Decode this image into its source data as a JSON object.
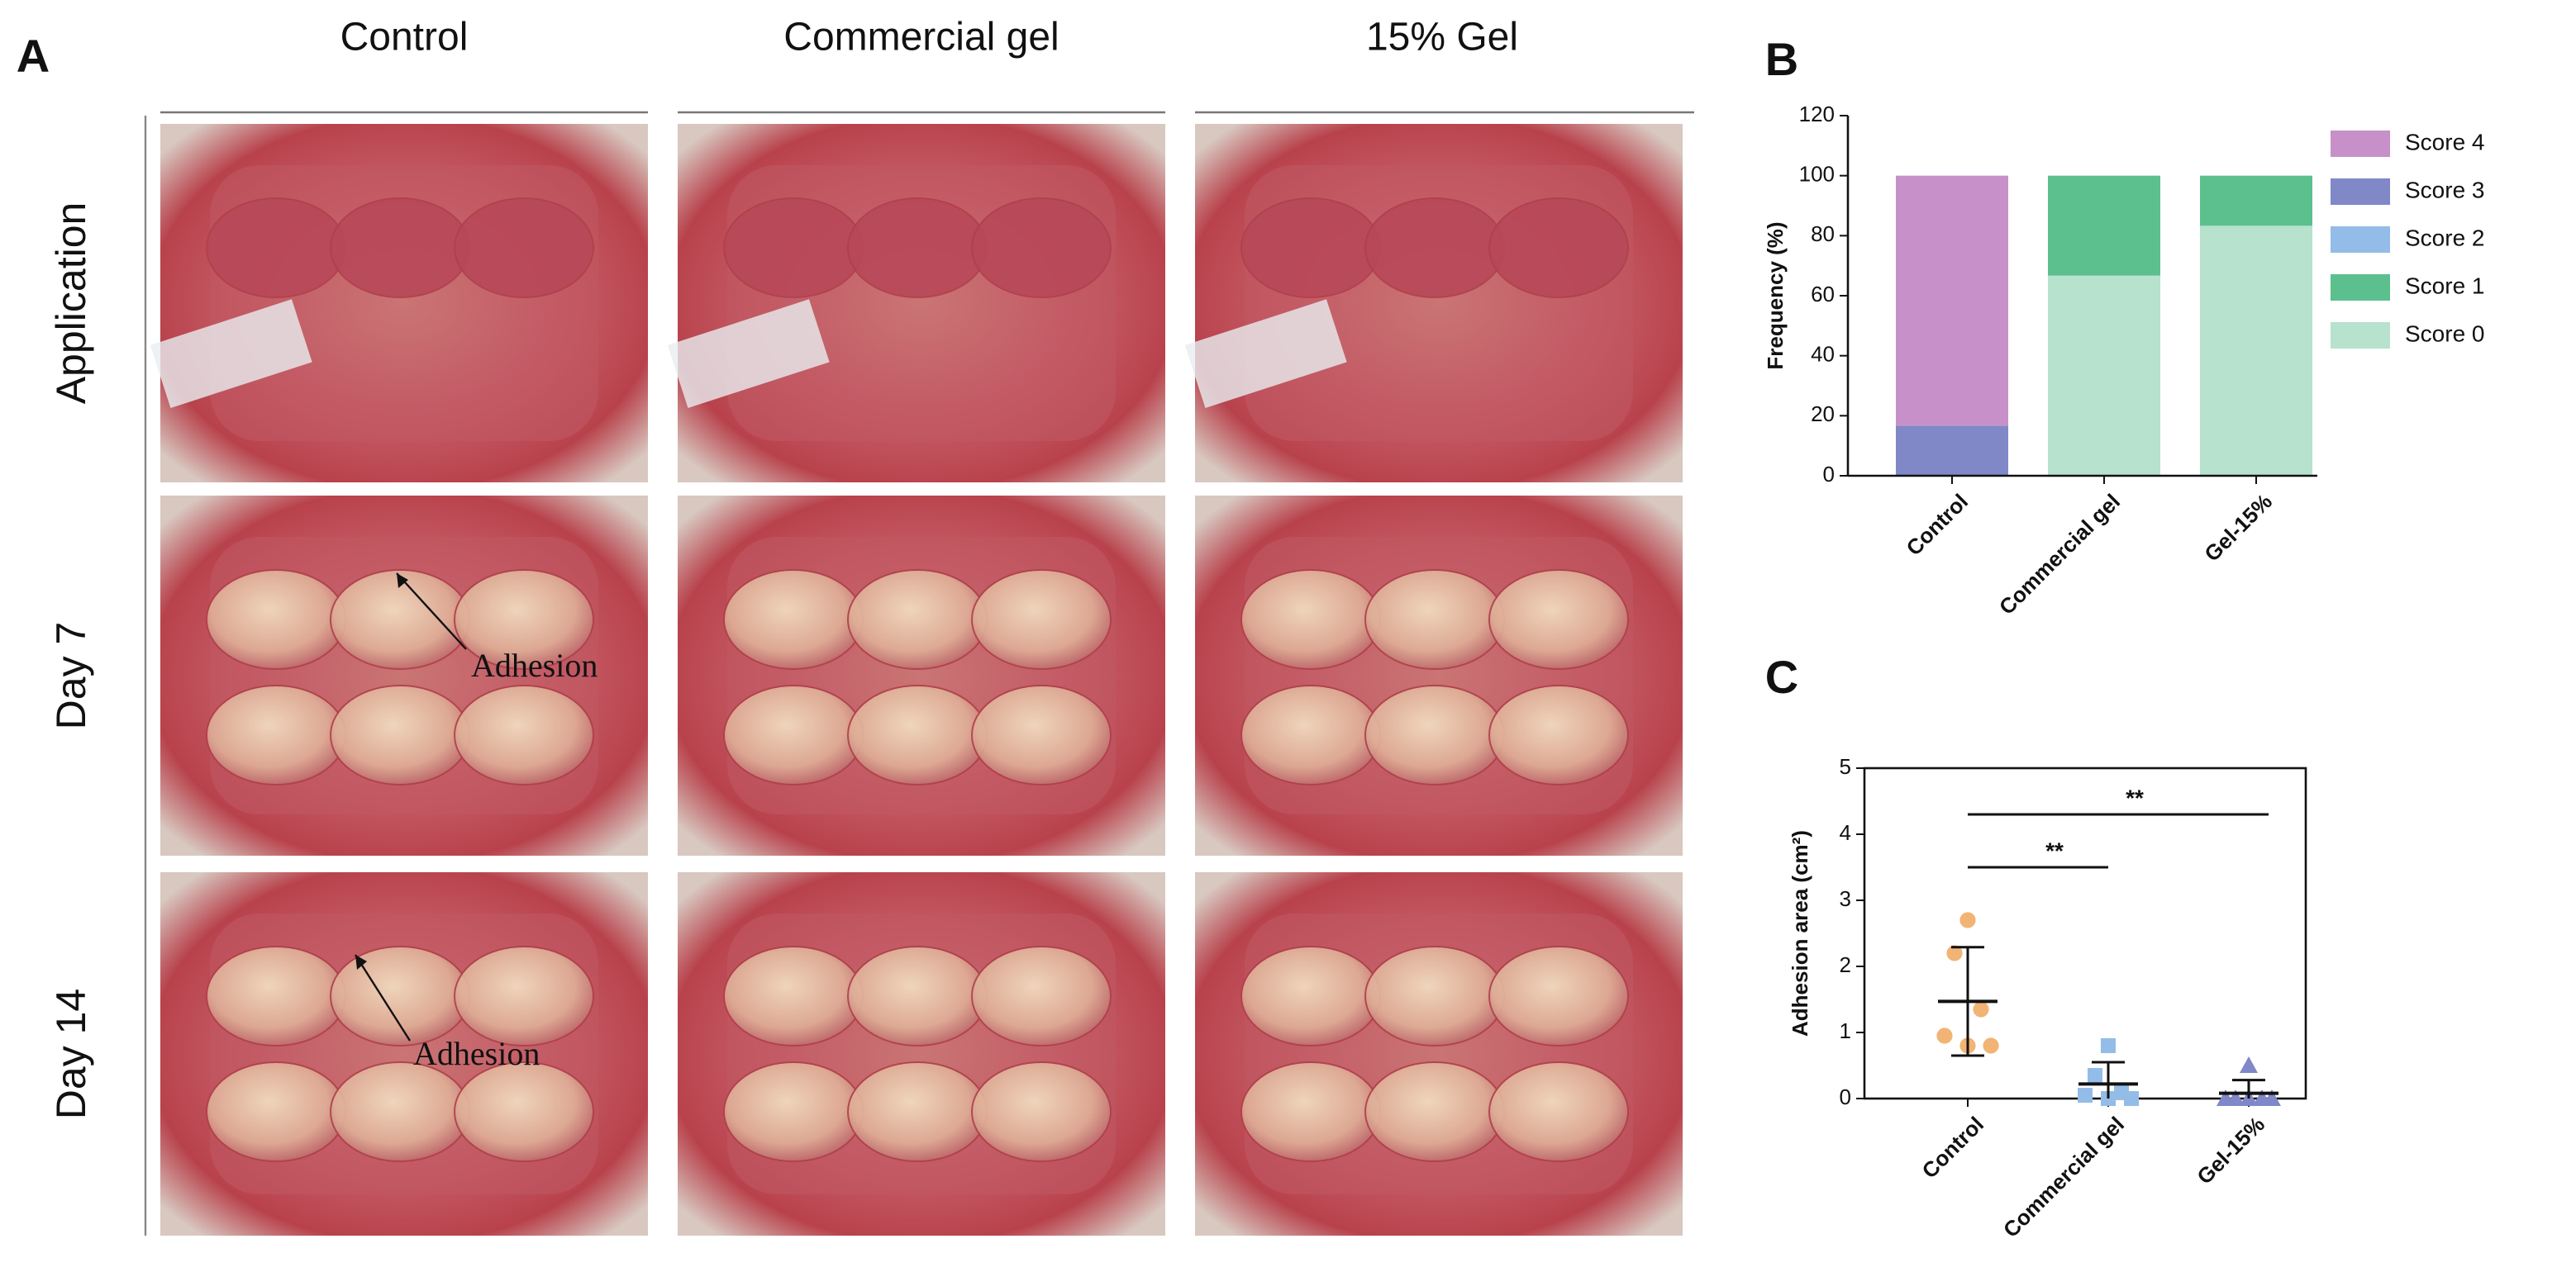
{
  "panel_a": {
    "label": "A",
    "columns": [
      "Control",
      "Commercial gel",
      "15% Gel"
    ],
    "rows": [
      "Application",
      "Day 7",
      "Day 14"
    ],
    "annotations": [
      "Adhesion",
      "Adhesion"
    ]
  },
  "chart_data": [
    {
      "type": "stacked_bar",
      "panel_label": "B",
      "y_label": "Frequency  (%)",
      "categories": [
        "Control",
        "Commercial gel",
        "Gel-15%"
      ],
      "series": [
        {
          "name": "Score 4",
          "color": "#c890c8",
          "values": [
            83.3,
            0,
            0
          ]
        },
        {
          "name": "Score 3",
          "color": "#8088c8",
          "values": [
            16.7,
            0,
            0
          ]
        },
        {
          "name": "Score 2",
          "color": "#94bce8",
          "values": [
            0,
            0,
            0
          ]
        },
        {
          "name": "Score 1",
          "color": "#5cc08e",
          "values": [
            0,
            33.3,
            16.7
          ]
        },
        {
          "name": "Score 0",
          "color": "#b6e2ce",
          "values": [
            0,
            66.7,
            83.3
          ]
        }
      ],
      "ylim": [
        0,
        120
      ],
      "yticks": [
        0,
        20,
        40,
        60,
        80,
        100,
        120
      ],
      "legend": "right"
    },
    {
      "type": "dot_plot",
      "panel_label": "C",
      "y_label": "Adhesion area (cm²)",
      "categories": [
        "Control",
        "Commercial gel",
        "Gel-15%"
      ],
      "groups": [
        {
          "color": "#f2b474",
          "marker": "circle",
          "values": [
            2.7,
            2.2,
            1.35,
            0.95,
            0.8,
            0.8
          ],
          "mean": 1.47,
          "sd": 0.82
        },
        {
          "color": "#94bce8",
          "marker": "square",
          "values": [
            0.8,
            0.35,
            0.1,
            0.05,
            0,
            0
          ],
          "mean": 0.22,
          "sd": 0.33
        },
        {
          "color": "#8088c8",
          "marker": "triangle",
          "values": [
            0.5,
            0,
            0,
            0,
            0,
            0
          ],
          "mean": 0.08,
          "sd": 0.2
        }
      ],
      "significance": [
        {
          "text": "**",
          "y": 3.5
        },
        {
          "text": "**",
          "y": 4.3
        }
      ],
      "ylim": [
        0,
        5
      ],
      "yticks": [
        0,
        1,
        2,
        3,
        4,
        5
      ]
    }
  ]
}
